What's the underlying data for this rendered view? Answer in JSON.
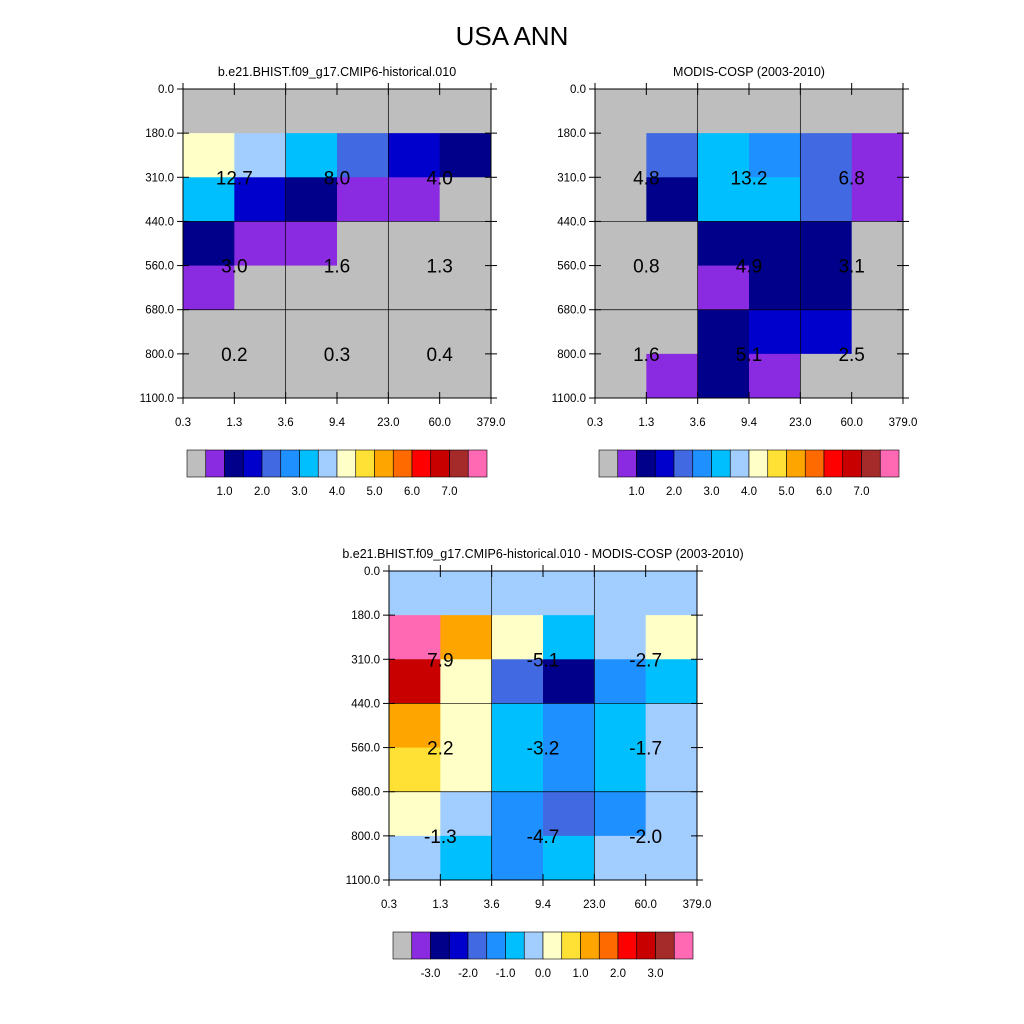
{
  "title": "USA ANN",
  "colors": {
    "missing": "#bebebe",
    "abs_palette": [
      "#bebebe",
      "#8a2be2",
      "#00008b",
      "#0000cd",
      "#4169e1",
      "#1e90ff",
      "#00bfff",
      "#a2cdff",
      "#ffffc8",
      "#ffe135",
      "#ffa500",
      "#ff6a00",
      "#ff0000",
      "#c80000",
      "#a52a2a",
      "#ff69b4"
    ],
    "diff_palette": [
      "#bebebe",
      "#8a2be2",
      "#00008b",
      "#0000cd",
      "#4169e1",
      "#1e90ff",
      "#00bfff",
      "#a2cdff",
      "#ffffc8",
      "#ffe135",
      "#ffa500",
      "#ff6a00",
      "#ff0000",
      "#c80000",
      "#a52a2a",
      "#ff69b4"
    ]
  },
  "colorbar_abs": {
    "labels": [
      "1.0",
      "2.0",
      "3.0",
      "4.0",
      "5.0",
      "6.0",
      "7.0"
    ]
  },
  "colorbar_diff": {
    "labels": [
      "-3.0",
      "-2.0",
      "-1.0",
      "0.0",
      "1.0",
      "2.0",
      "3.0"
    ]
  },
  "chart_data": [
    {
      "type": "heatmap",
      "title": "b.e21.BHIST.f09_g17.CMIP6-historical.010",
      "x_ticks": [
        "0.3",
        "1.3",
        "3.6",
        "9.4",
        "23.0",
        "60.0",
        "379.0"
      ],
      "y_ticks": [
        "0.0",
        "180.0",
        "310.0",
        "440.0",
        "560.0",
        "680.0",
        "800.0",
        "1100.0"
      ],
      "cell_color_index": [
        [
          0,
          0,
          0,
          0,
          0,
          0
        ],
        [
          8,
          7,
          6,
          4,
          3,
          2
        ],
        [
          6,
          3,
          2,
          1,
          1,
          0
        ],
        [
          2,
          1,
          1,
          0,
          0,
          0
        ],
        [
          1,
          0,
          0,
          0,
          0,
          0
        ],
        [
          0,
          0,
          0,
          0,
          0,
          0
        ],
        [
          0,
          0,
          0,
          0,
          0,
          0
        ]
      ],
      "block_labels": [
        [
          "12.7",
          "8.0",
          "4.0"
        ],
        [
          "3.0",
          "1.6",
          "1.3"
        ],
        [
          "0.2",
          "0.3",
          "0.4"
        ]
      ]
    },
    {
      "type": "heatmap",
      "title": "MODIS-COSP (2003-2010)",
      "x_ticks": [
        "0.3",
        "1.3",
        "3.6",
        "9.4",
        "23.0",
        "60.0",
        "379.0"
      ],
      "y_ticks": [
        "0.0",
        "180.0",
        "310.0",
        "440.0",
        "560.0",
        "680.0",
        "800.0",
        "1100.0"
      ],
      "cell_color_index": [
        [
          0,
          0,
          0,
          0,
          0,
          0
        ],
        [
          0,
          4,
          6,
          5,
          4,
          1
        ],
        [
          0,
          2,
          6,
          6,
          4,
          1
        ],
        [
          0,
          0,
          2,
          2,
          2,
          0
        ],
        [
          0,
          0,
          1,
          2,
          2,
          0
        ],
        [
          0,
          0,
          2,
          3,
          3,
          0
        ],
        [
          0,
          1,
          2,
          1,
          0,
          0
        ]
      ],
      "block_labels": [
        [
          "4.8",
          "13.2",
          "6.8"
        ],
        [
          "0.8",
          "4.9",
          "3.1"
        ],
        [
          "1.6",
          "5.1",
          "2.5"
        ]
      ]
    },
    {
      "type": "heatmap",
      "title": "b.e21.BHIST.f09_g17.CMIP6-historical.010 - MODIS-COSP (2003-2010)",
      "x_ticks": [
        "0.3",
        "1.3",
        "3.6",
        "9.4",
        "23.0",
        "60.0",
        "379.0"
      ],
      "y_ticks": [
        "0.0",
        "180.0",
        "310.0",
        "440.0",
        "560.0",
        "680.0",
        "800.0",
        "1100.0"
      ],
      "cell_color_index": [
        [
          7,
          7,
          7,
          7,
          7,
          7
        ],
        [
          15,
          10,
          8,
          6,
          7,
          8
        ],
        [
          13,
          8,
          4,
          2,
          5,
          6
        ],
        [
          10,
          8,
          6,
          5,
          6,
          7
        ],
        [
          9,
          8,
          6,
          5,
          6,
          7
        ],
        [
          8,
          7,
          5,
          4,
          5,
          7
        ],
        [
          7,
          6,
          5,
          6,
          7,
          7
        ]
      ],
      "block_labels": [
        [
          "7.9",
          "-5.1",
          "-2.7"
        ],
        [
          "2.2",
          "-3.2",
          "-1.7"
        ],
        [
          "-1.3",
          "-4.7",
          "-2.0"
        ]
      ]
    }
  ]
}
